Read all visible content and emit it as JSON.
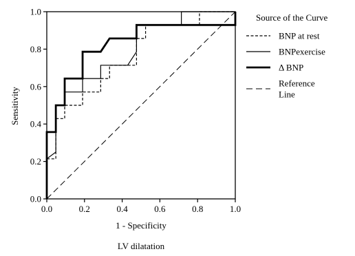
{
  "chart_data": {
    "type": "line",
    "title": "LV dilatation",
    "xlabel": "1 - Specificity",
    "ylabel": "Sensitivity",
    "xlim": [
      0,
      1
    ],
    "ylim": [
      0,
      1
    ],
    "x_ticks": [
      "0.0",
      "0.2",
      "0.4",
      "0.6",
      "0.8",
      "1.0"
    ],
    "y_ticks": [
      "0.0",
      "0.2",
      "0.4",
      "0.6",
      "0.8",
      "1.0"
    ],
    "grid": false,
    "legend": {
      "title": "Source of the Curve",
      "position": "right"
    },
    "series": [
      {
        "name": "BNP at rest",
        "style": "dashed-short",
        "x": [
          0,
          0,
          0.048,
          0.048,
          0.095,
          0.095,
          0.19,
          0.19,
          0.286,
          0.286,
          0.333,
          0.333,
          0.476,
          0.476,
          0.524,
          0.524,
          0.81,
          0.81,
          1.0
        ],
        "y": [
          0,
          0.214,
          0.214,
          0.429,
          0.429,
          0.5,
          0.5,
          0.571,
          0.571,
          0.643,
          0.643,
          0.714,
          0.714,
          0.857,
          0.857,
          0.929,
          0.929,
          1.0,
          1.0
        ]
      },
      {
        "name": "BNPexercise",
        "style": "solid-thin",
        "x": [
          0,
          0,
          0.048,
          0.048,
          0.095,
          0.095,
          0.19,
          0.19,
          0.286,
          0.286,
          0.429,
          0.476,
          0.476,
          0.714,
          0.714,
          1.0
        ],
        "y": [
          0,
          0.214,
          0.25,
          0.5,
          0.5,
          0.571,
          0.571,
          0.643,
          0.643,
          0.714,
          0.714,
          0.786,
          0.929,
          0.929,
          1.0,
          1.0
        ]
      },
      {
        "name": "Δ BNP",
        "style": "solid-thick",
        "x": [
          0,
          0,
          0.048,
          0.048,
          0.095,
          0.095,
          0.19,
          0.19,
          0.286,
          0.333,
          0.429,
          0.476,
          0.476,
          1.0,
          1.0
        ],
        "y": [
          0,
          0.357,
          0.357,
          0.5,
          0.5,
          0.643,
          0.643,
          0.786,
          0.786,
          0.857,
          0.857,
          0.857,
          0.929,
          0.929,
          1.0
        ]
      },
      {
        "name": "Reference Line",
        "style": "dashed-long",
        "x": [
          0,
          1
        ],
        "y": [
          0,
          1
        ]
      }
    ]
  }
}
